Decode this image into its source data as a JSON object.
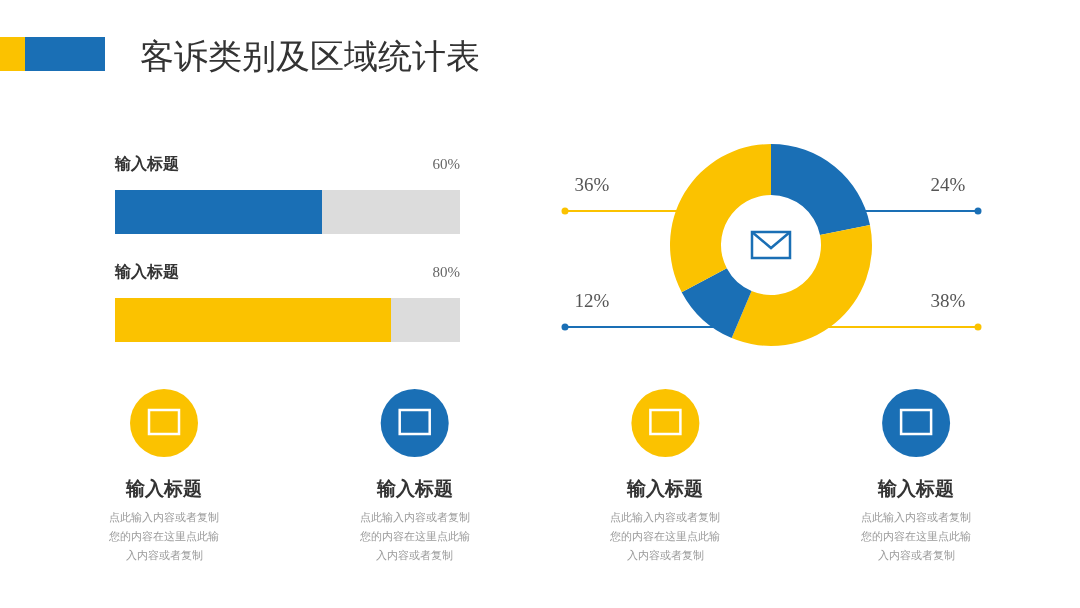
{
  "chart_data": [
    {
      "type": "other",
      "title": "客诉类别及区域统计表"
    },
    {
      "type": "bar",
      "orientation": "horizontal",
      "categories": [
        "输入标题",
        "输入标题"
      ],
      "values": [
        60,
        80
      ],
      "colors": [
        "#1a6fb5",
        "#fbc200"
      ],
      "value_labels": [
        "60%",
        "80%"
      ],
      "xlim": [
        0,
        100
      ],
      "tick_labels": false
    },
    {
      "type": "donut",
      "categories": [
        null,
        null,
        null,
        null
      ],
      "values": [
        24,
        38,
        12,
        36
      ],
      "colors": [
        "#1a6fb5",
        "#fbc200",
        "#1a6fb5",
        "#fbc200"
      ],
      "value_labels": [
        "24%",
        "38%",
        "12%",
        "36%"
      ]
    },
    {
      "type": "other",
      "annotations": [
        "输入标题",
        "点此输入内容或者复制您的内容在这里点此输入内容或者复制",
        "输入标题",
        "点此输入内容或者复制您的内容在这里点此输入内容或者复制",
        "输入标题",
        "点此输入内容或者复制您的内容在这里点此输入内容或者复制",
        "输入标题",
        "点此输入内容或者复制您的内容在这里点此输入内容或者复制"
      ]
    }
  ]
}
